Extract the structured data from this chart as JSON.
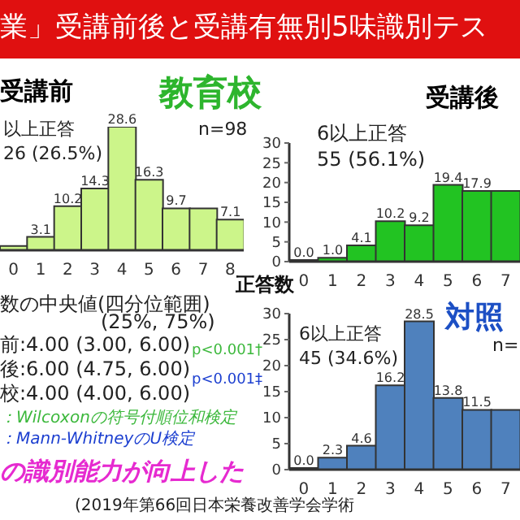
{
  "chart_data": [
    {
      "type": "other",
      "title": "業」受講前後と受講有無別5味識別テス",
      "annotations": [
        "数の中央値(四分位範囲)",
        "(25%, 75%)",
        "前:4.00 (3.00, 6.00)",
        "後:6.00 (4.75, 6.00)",
        "校:4.00 (4.00, 6.00)",
        "p<0.001†",
        "p<0.001‡",
        "：Wilcoxonの符号付順位和検定",
        "：Mann-WhitneyのU検定",
        "の識別能力が向上した",
        "(2019年第66回日本栄養改善学会学術"
      ]
    },
    {
      "type": "bar",
      "title": "受講前",
      "xlabel": "正答数",
      "categories": [
        "0",
        "1",
        "2",
        "3",
        "4",
        "5",
        "6",
        "7",
        "8"
      ],
      "values": [
        1.0,
        3.1,
        10.2,
        14.3,
        28.6,
        16.3,
        9.7,
        9.7,
        7.1
      ],
      "value_labels": [
        null,
        "3.1",
        "10.2",
        "14.3",
        "28.6",
        "16.3",
        "9.7",
        null,
        "7.1"
      ],
      "color": "#ccf58a",
      "annotations": [
        "教育校",
        "n=98",
        "以上正答",
        "26 (26.5%)"
      ]
    },
    {
      "type": "bar",
      "title": "受講後",
      "categories": [
        "0",
        "1",
        "2",
        "3",
        "4",
        "5",
        "6",
        "7"
      ],
      "values": [
        0.0,
        1.0,
        4.1,
        10.2,
        9.2,
        19.4,
        17.9,
        17.9
      ],
      "value_labels": [
        "0.0",
        "1.0",
        "4.1",
        "10.2",
        "9.2",
        "19.4",
        "17.9",
        null
      ],
      "color": "#22c322",
      "ylim": [
        0,
        30
      ],
      "yticks": [
        0,
        5,
        10,
        15,
        20,
        25,
        30
      ],
      "annotations": [
        "6以上正答",
        "55 (56.1%)"
      ]
    },
    {
      "type": "bar",
      "title": "対照",
      "categories": [
        "0",
        "1",
        "2",
        "3",
        "4",
        "5",
        "6",
        "7"
      ],
      "values": [
        0.0,
        2.3,
        4.6,
        16.2,
        28.5,
        13.8,
        11.5,
        11.5
      ],
      "value_labels": [
        "0.0",
        "2.3",
        "4.6",
        "16.2",
        "28.5",
        "13.8",
        "11.5",
        null
      ],
      "color": "#4f81bd",
      "ylim": [
        0,
        30
      ],
      "yticks": [
        0,
        5,
        10,
        15,
        20,
        25,
        30
      ],
      "annotations": [
        "n=",
        "6以上正答",
        "45 (34.6%)"
      ]
    }
  ]
}
